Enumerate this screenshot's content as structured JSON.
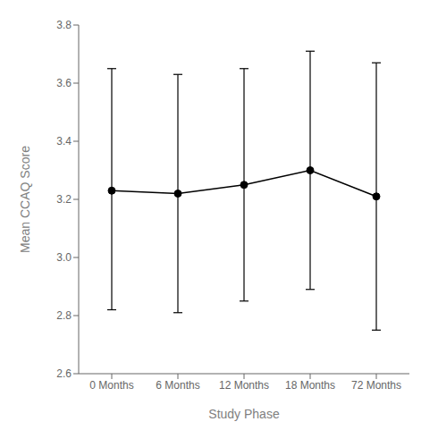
{
  "chart_data": {
    "type": "line",
    "xlabel": "Study Phase",
    "ylabel": "Mean CCAQ Score",
    "categories": [
      "0 Months",
      "6 Months",
      "12 Months",
      "18 Months",
      "72 Months"
    ],
    "values": [
      3.23,
      3.22,
      3.25,
      3.3,
      3.21
    ],
    "upper": [
      3.65,
      3.63,
      3.65,
      3.71,
      3.67
    ],
    "lower": [
      2.82,
      2.81,
      2.85,
      2.89,
      2.75
    ],
    "color": "#000000",
    "marker": "circle",
    "ylim": [
      2.6,
      3.8
    ],
    "yticks": [
      2.6,
      2.8,
      {
        "value": 3,
        "label": "3.0"
      },
      3.2,
      3.4,
      3.6,
      3.8
    ],
    "grid": false
  }
}
